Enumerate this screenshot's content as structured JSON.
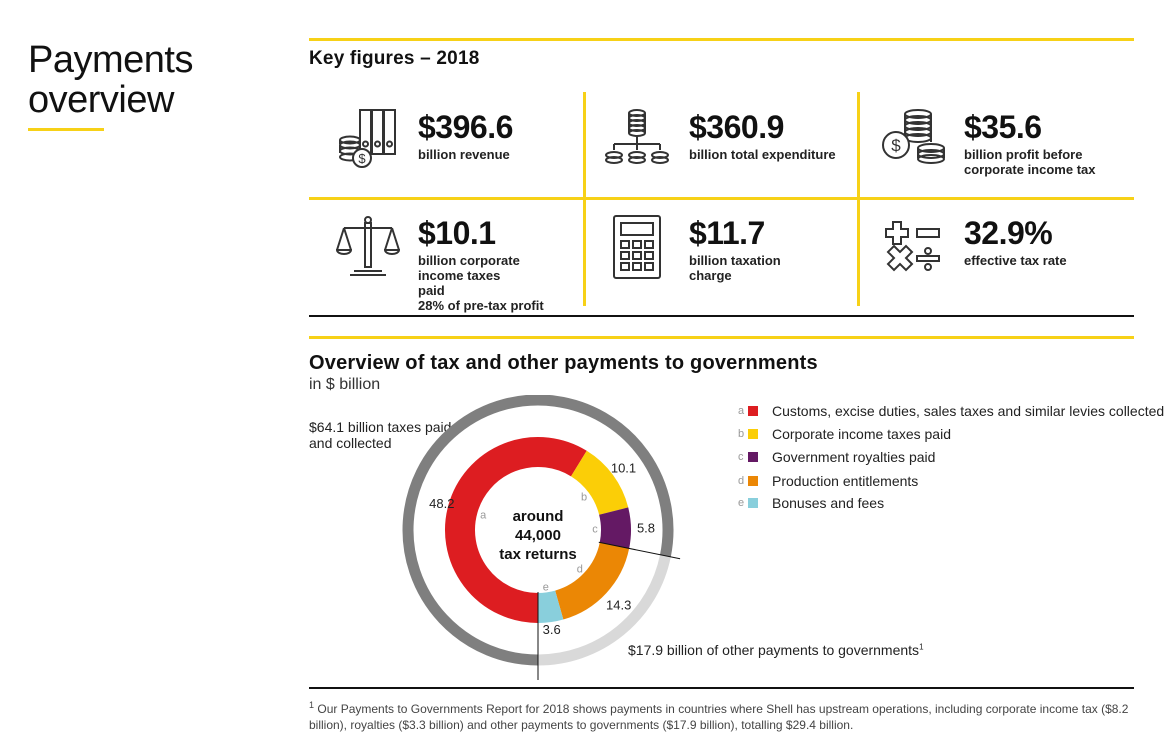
{
  "page": {
    "title_line1": "Payments",
    "title_line2": "overview"
  },
  "key_figures": {
    "heading": "Key figures – 2018",
    "items": [
      {
        "value": "$396.6",
        "label": "billion revenue",
        "icon": "folders-coins-icon"
      },
      {
        "value": "$360.9",
        "label": "billion total expenditure",
        "icon": "coin-distribution-icon"
      },
      {
        "value": "$35.6",
        "label": "billion profit before corporate income tax",
        "icon": "coin-stacks-icon"
      },
      {
        "value": "$10.1",
        "label": "billion corporate income taxes paid",
        "extra": "28% of pre-tax profit",
        "icon": "scales-icon"
      },
      {
        "value": "$11.7",
        "label": "billion taxation charge",
        "icon": "calculator-icon"
      },
      {
        "value": "32.9%",
        "label": "effective tax rate",
        "icon": "math-operators-icon"
      }
    ]
  },
  "overview": {
    "title": "Overview of tax and other payments to governments",
    "unit": "in $ billion",
    "taxes_paid_label": "$64.1 billion taxes paid and collected",
    "center_line1": "around",
    "center_line2": "44,000",
    "center_line3": "tax returns",
    "other_payments_label": "$17.9 billion of other payments to governments",
    "other_payments_sup": "1"
  },
  "chart_data": {
    "type": "pie",
    "title": "Overview of tax and other payments to governments",
    "unit": "in $ billion",
    "categories": [
      "Customs, excise duties, sales taxes and similar levies collected",
      "Corporate income taxes paid",
      "Government royalties paid",
      "Production entitlements",
      "Bonuses and fees"
    ],
    "letters": [
      "a",
      "b",
      "c",
      "d",
      "e"
    ],
    "values": [
      48.2,
      10.1,
      5.8,
      14.3,
      3.6
    ],
    "value_labels": [
      "48.2",
      "10.1",
      "5.8",
      "14.3",
      "3.6"
    ],
    "colors": [
      "#dd1d21",
      "#fbce07",
      "#641964",
      "#eb8705",
      "#89cfdc"
    ],
    "outer_ring": [
      {
        "label": "$64.1 billion taxes paid and collected",
        "value": 64.1,
        "color": "#7f7f7f"
      },
      {
        "label": "$17.9 billion of other payments to governments",
        "value": 17.9,
        "color": "#d9d9d9"
      }
    ],
    "legend_placement": "right"
  },
  "footnote": {
    "marker": "1",
    "text": "Our Payments to Governments Report for 2018 shows payments in countries where Shell has upstream operations, including corporate income tax ($8.2 billion), royalties ($3.3 billion) and other payments to governments ($17.9 billion), totalling $29.4 billion."
  }
}
